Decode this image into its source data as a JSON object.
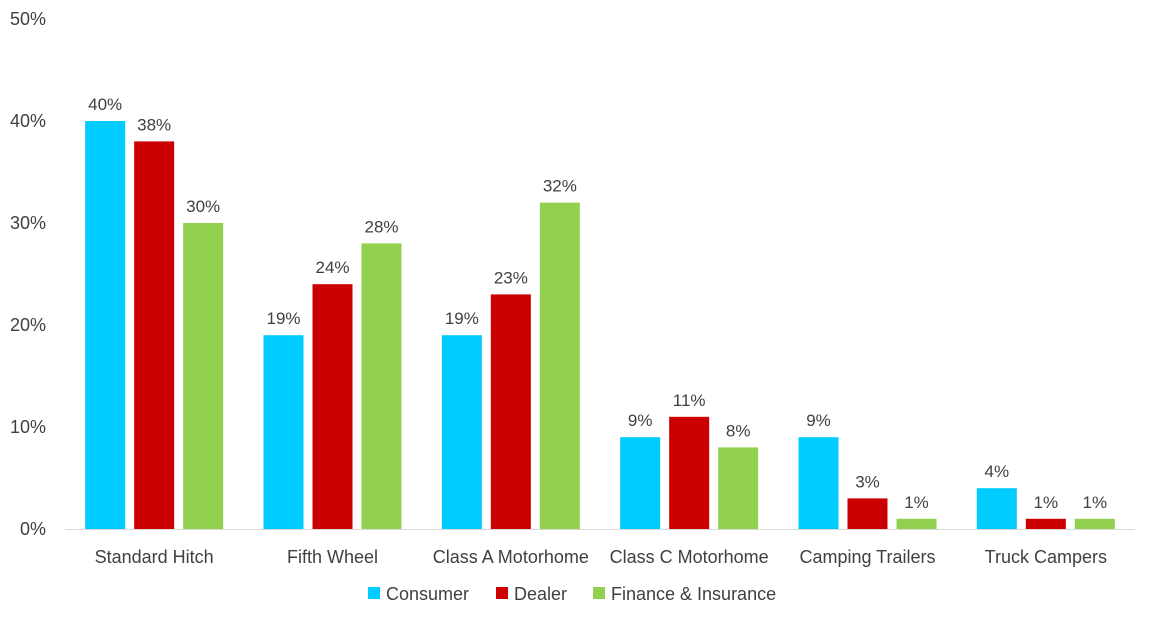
{
  "chart_data": {
    "type": "bar",
    "categories": [
      "Standard Hitch",
      "Fifth Wheel",
      "Class A Motorhome",
      "Class C Motorhome",
      "Camping Trailers",
      "Truck Campers"
    ],
    "series": [
      {
        "name": "Consumer",
        "color": "#00CCFF",
        "values": [
          40,
          19,
          19,
          9,
          9,
          4
        ]
      },
      {
        "name": "Dealer",
        "color": "#CC0000",
        "values": [
          38,
          24,
          23,
          11,
          3,
          1
        ]
      },
      {
        "name": "Finance & Insurance",
        "color": "#92D050",
        "values": [
          30,
          28,
          32,
          8,
          1,
          1
        ]
      }
    ],
    "value_suffix": "%",
    "ylim": [
      0,
      50
    ],
    "y_ticks": [
      0,
      10,
      20,
      30,
      40,
      50
    ],
    "grid": false,
    "legend": "bottom-center",
    "title": "",
    "xlabel": "",
    "ylabel": ""
  }
}
